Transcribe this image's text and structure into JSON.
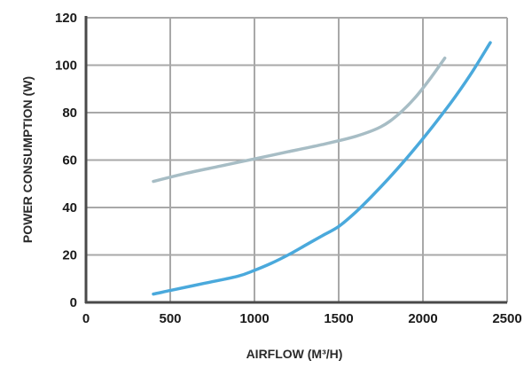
{
  "chart_data": {
    "type": "line",
    "xlabel": "AIRFLOW (M³/H)",
    "ylabel": "POWER CONSUMPTION (W)",
    "xlim": [
      0,
      2500
    ],
    "ylim": [
      0,
      120
    ],
    "xticks": [
      "0",
      "500",
      "1000",
      "1500",
      "2000",
      "2500"
    ],
    "yticks": [
      "0",
      "20",
      "40",
      "60",
      "80",
      "100",
      "120"
    ],
    "grid": true,
    "series": [
      {
        "color": "#a7bdc5",
        "x": [
          400,
          600,
          800,
          1000,
          1200,
          1400,
          1600,
          1750,
          1850,
          1950,
          2050,
          2130
        ],
        "y": [
          51,
          54.5,
          57.5,
          60.5,
          63.5,
          66.5,
          70,
          74,
          79,
          86,
          95,
          103
        ]
      },
      {
        "color": "#4aa9dc",
        "x": [
          400,
          500,
          700,
          900,
          1000,
          1100,
          1200,
          1300,
          1400,
          1500,
          1600,
          1700,
          1800,
          1900,
          2000,
          2100,
          2200,
          2300,
          2400
        ],
        "y": [
          3.5,
          5,
          8,
          11,
          13.5,
          16.5,
          20,
          24,
          28,
          32,
          38,
          45,
          52.5,
          60.5,
          69,
          78,
          87.5,
          98,
          109.5
        ]
      }
    ]
  }
}
